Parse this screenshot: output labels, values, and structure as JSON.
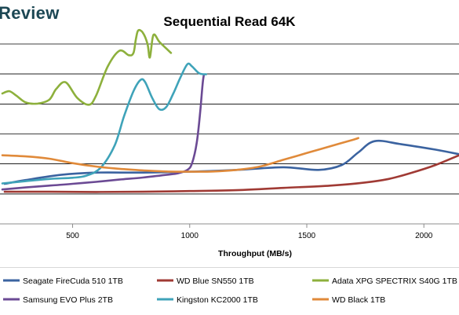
{
  "brand": "Review",
  "chart_data": {
    "type": "line",
    "title": "Sequential Read 64K",
    "xlabel": "Throughput (MB/s)",
    "ylabel": "",
    "xlim": [
      200,
      2150
    ],
    "ylim": [
      0,
      1000
    ],
    "x_ticks": [
      500,
      1000,
      1500,
      2000
    ],
    "y_gridlines": [
      0,
      133,
      267,
      400,
      533,
      667,
      800
    ],
    "grid": true,
    "legend_position": "bottom",
    "series": [
      {
        "name": "Seagate FireCuda 510 1TB",
        "color": "#3b63a0",
        "points": [
          [
            210,
            178
          ],
          [
            300,
            195
          ],
          [
            450,
            218
          ],
          [
            600,
            228
          ],
          [
            800,
            228
          ],
          [
            1000,
            232
          ],
          [
            1200,
            240
          ],
          [
            1400,
            252
          ],
          [
            1550,
            240
          ],
          [
            1650,
            262
          ],
          [
            1720,
            318
          ],
          [
            1790,
            368
          ],
          [
            1900,
            355
          ],
          [
            2050,
            330
          ],
          [
            2150,
            310
          ]
        ]
      },
      {
        "name": "WD Blue SN550 1TB",
        "color": "#a03a34",
        "points": [
          [
            210,
            143
          ],
          [
            400,
            143
          ],
          [
            600,
            142
          ],
          [
            800,
            143
          ],
          [
            1000,
            146
          ],
          [
            1200,
            150
          ],
          [
            1400,
            160
          ],
          [
            1600,
            170
          ],
          [
            1750,
            184
          ],
          [
            1850,
            200
          ],
          [
            1950,
            228
          ],
          [
            2050,
            262
          ],
          [
            2150,
            305
          ]
        ]
      },
      {
        "name": "Adata XPG SPECTRIX S40G 1TB",
        "color": "#8db03c",
        "points": [
          [
            200,
            580
          ],
          [
            230,
            590
          ],
          [
            260,
            570
          ],
          [
            300,
            540
          ],
          [
            350,
            535
          ],
          [
            400,
            552
          ],
          [
            430,
            600
          ],
          [
            470,
            630
          ],
          [
            520,
            560
          ],
          [
            570,
            530
          ],
          [
            600,
            570
          ],
          [
            650,
            700
          ],
          [
            700,
            770
          ],
          [
            740,
            750
          ],
          [
            760,
            760
          ],
          [
            770,
            820
          ],
          [
            780,
            860
          ],
          [
            800,
            850
          ],
          [
            820,
            800
          ],
          [
            830,
            740
          ],
          [
            845,
            840
          ],
          [
            870,
            810
          ],
          [
            900,
            780
          ],
          [
            920,
            760
          ]
        ]
      },
      {
        "name": "Samsung EVO Plus 2TB",
        "color": "#6b4a94",
        "points": [
          [
            200,
            153
          ],
          [
            300,
            162
          ],
          [
            400,
            170
          ],
          [
            500,
            178
          ],
          [
            600,
            187
          ],
          [
            700,
            197
          ],
          [
            800,
            206
          ],
          [
            900,
            218
          ],
          [
            950,
            225
          ],
          [
            990,
            240
          ],
          [
            1010,
            270
          ],
          [
            1030,
            360
          ],
          [
            1045,
            500
          ],
          [
            1055,
            620
          ],
          [
            1060,
            660
          ]
        ]
      },
      {
        "name": "Kingston KC2000 1TB",
        "color": "#3fa3b9",
        "points": [
          [
            200,
            180
          ],
          [
            300,
            190
          ],
          [
            400,
            200
          ],
          [
            500,
            205
          ],
          [
            560,
            215
          ],
          [
            620,
            250
          ],
          [
            680,
            350
          ],
          [
            720,
            480
          ],
          [
            760,
            590
          ],
          [
            790,
            640
          ],
          [
            810,
            630
          ],
          [
            840,
            560
          ],
          [
            870,
            510
          ],
          [
            900,
            520
          ],
          [
            930,
            580
          ],
          [
            960,
            650
          ],
          [
            990,
            710
          ],
          [
            1010,
            700
          ],
          [
            1040,
            670
          ],
          [
            1070,
            665
          ]
        ]
      },
      {
        "name": "WD Black 1TB",
        "color": "#e08a3a",
        "points": [
          [
            200,
            305
          ],
          [
            300,
            300
          ],
          [
            400,
            290
          ],
          [
            500,
            270
          ],
          [
            600,
            255
          ],
          [
            700,
            245
          ],
          [
            800,
            238
          ],
          [
            900,
            233
          ],
          [
            1000,
            232
          ],
          [
            1100,
            233
          ],
          [
            1200,
            240
          ],
          [
            1300,
            255
          ],
          [
            1400,
            285
          ],
          [
            1500,
            315
          ],
          [
            1600,
            345
          ],
          [
            1700,
            375
          ],
          [
            1720,
            382
          ]
        ]
      }
    ]
  }
}
